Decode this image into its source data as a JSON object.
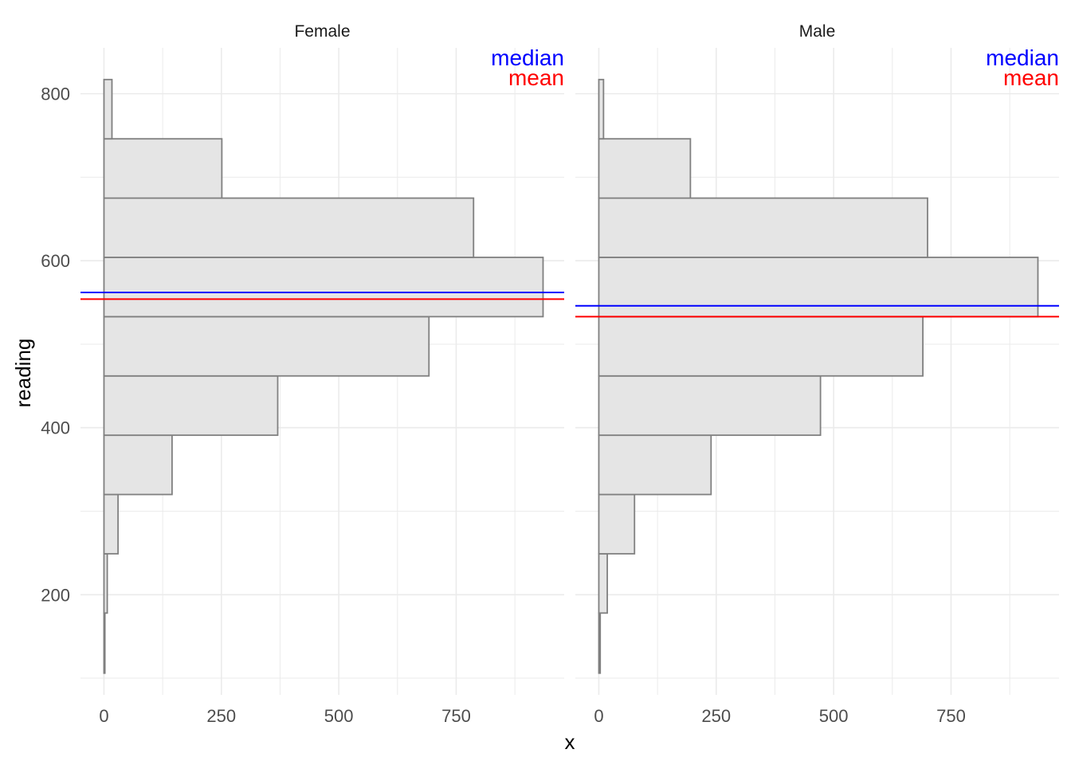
{
  "chart_data": {
    "type": "bar",
    "orientation": "horizontal",
    "xlabel": "x",
    "ylabel": "reading",
    "xlim": [
      -50,
      980
    ],
    "ylim": [
      80,
      855
    ],
    "xticks": [
      0,
      250,
      500,
      750
    ],
    "yticks": [
      200,
      400,
      600,
      800
    ],
    "grid": true,
    "colors": {
      "bar_fill": "#e5e5e5",
      "bar_outline": "#808080",
      "median": "#0000ff",
      "mean": "#ff0000",
      "grid": "#ebebeb"
    },
    "annotations": {
      "median": "median",
      "mean": "mean"
    },
    "bins": [
      [
        106,
        178
      ],
      [
        178,
        249
      ],
      [
        249,
        320
      ],
      [
        320,
        391
      ],
      [
        391,
        462
      ],
      [
        462,
        533
      ],
      [
        533,
        604
      ],
      [
        604,
        675
      ],
      [
        675,
        746
      ],
      [
        746,
        817
      ]
    ],
    "panels": [
      {
        "title": "Female",
        "counts": [
          2,
          7,
          30,
          145,
          370,
          692,
          935,
          787,
          251,
          17
        ],
        "median": 562,
        "mean": 554
      },
      {
        "title": "Male",
        "counts": [
          3,
          18,
          76,
          239,
          472,
          690,
          935,
          700,
          195,
          10
        ],
        "median": 546,
        "mean": 533
      }
    ]
  }
}
